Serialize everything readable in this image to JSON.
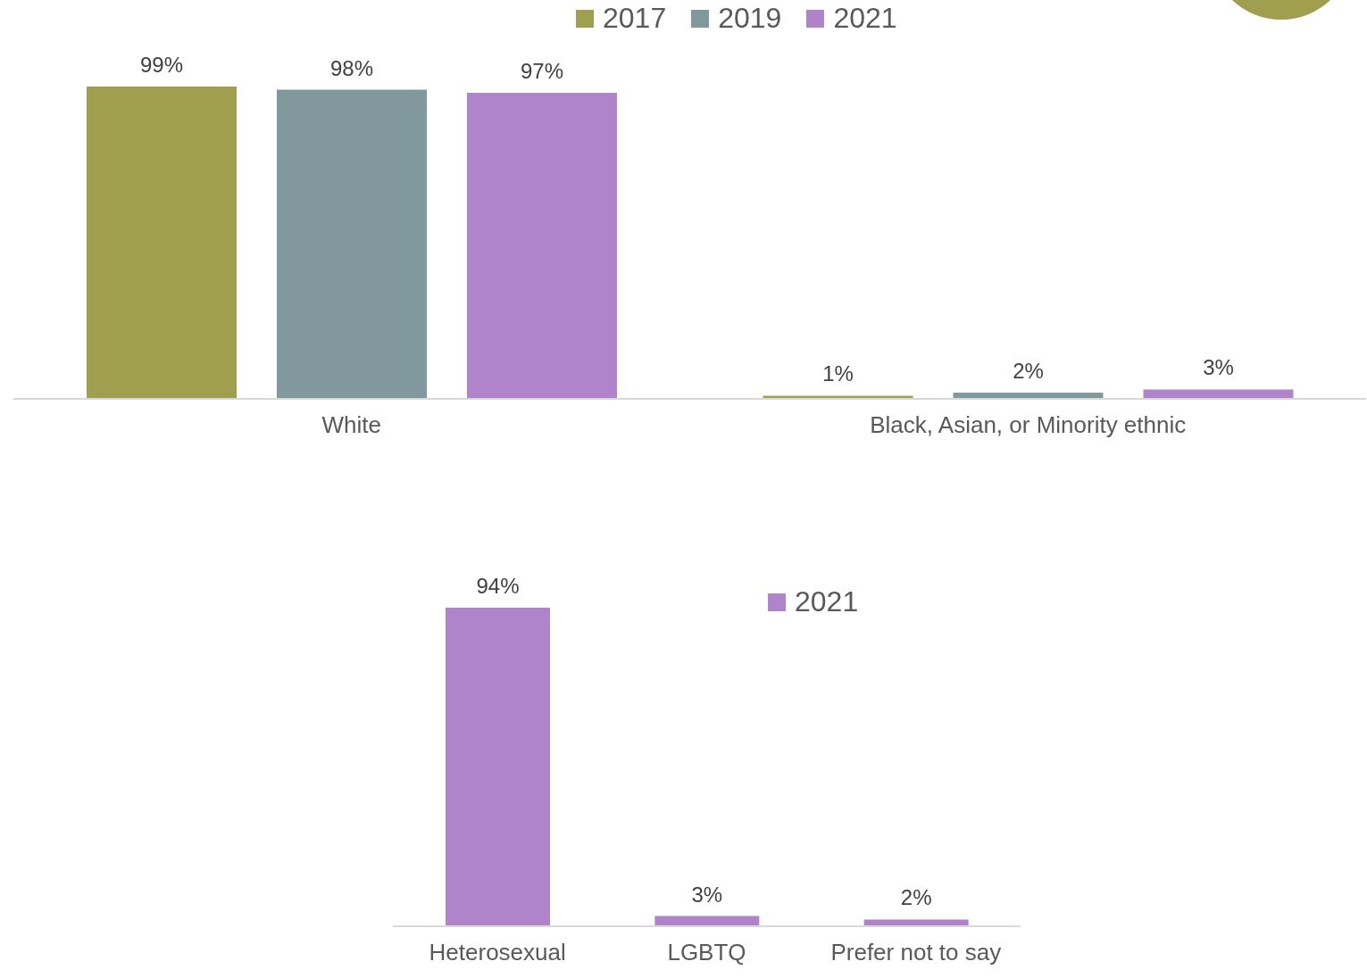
{
  "chart_data": [
    {
      "type": "bar",
      "categories": [
        "White",
        "Black, Asian, or Minority ethnic"
      ],
      "legend": "top",
      "data_labels": true,
      "series": [
        {
          "name": "2017",
          "color": "#a09f50",
          "values": [
            99,
            1
          ],
          "value_labels": [
            "99%",
            "1%"
          ]
        },
        {
          "name": "2019",
          "color": "#81999d",
          "values": [
            98,
            2
          ],
          "value_labels": [
            "98%",
            "2%"
          ]
        },
        {
          "name": "2021",
          "color": "#af84cb",
          "values": [
            97,
            3
          ],
          "value_labels": [
            "97%",
            "3%"
          ]
        }
      ]
    },
    {
      "type": "bar",
      "categories": [
        "Heterosexual",
        "LGBTQ",
        "Prefer not to say"
      ],
      "legend": "top right",
      "data_labels": true,
      "series": [
        {
          "name": "2021",
          "color": "#af84cb",
          "values": [
            94,
            3,
            2
          ],
          "value_labels": [
            "94%",
            "3%",
            "2%"
          ]
        }
      ]
    }
  ]
}
